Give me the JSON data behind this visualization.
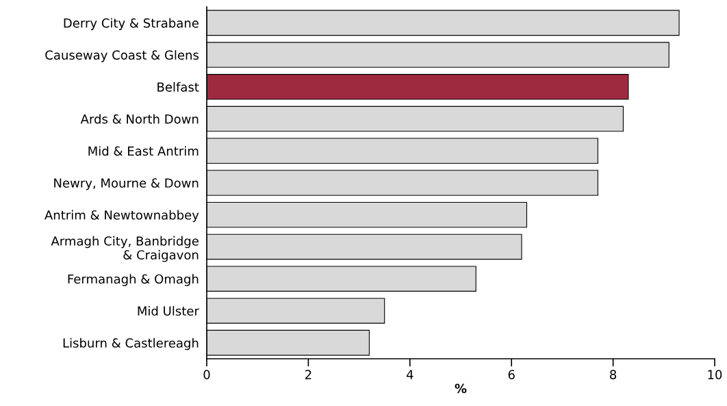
{
  "chart_data": {
    "type": "bar",
    "orientation": "horizontal",
    "xlabel": "%",
    "categories": [
      "Derry City & Strabane",
      "Causeway Coast & Glens",
      "Belfast",
      "Ards & North Down",
      "Mid & East Antrim",
      "Newry, Mourne & Down",
      "Antrim & Newtownabbey",
      "Armagh City, Banbridge\n& Craigavon",
      "Fermanagh & Omagh",
      "Mid Ulster",
      "Lisburn & Castlereagh"
    ],
    "values": [
      9.3,
      9.1,
      8.3,
      8.2,
      7.7,
      7.7,
      6.3,
      6.2,
      5.3,
      3.5,
      3.2
    ],
    "colors": [
      "#d9d9d9",
      "#d9d9d9",
      "#9e2a3f",
      "#d9d9d9",
      "#d9d9d9",
      "#d9d9d9",
      "#d9d9d9",
      "#d9d9d9",
      "#d9d9d9",
      "#d9d9d9",
      "#d9d9d9"
    ],
    "xlim": [
      0,
      10
    ],
    "xticks": [
      0,
      2,
      4,
      6,
      8,
      10
    ],
    "grid": false,
    "legend": false
  }
}
